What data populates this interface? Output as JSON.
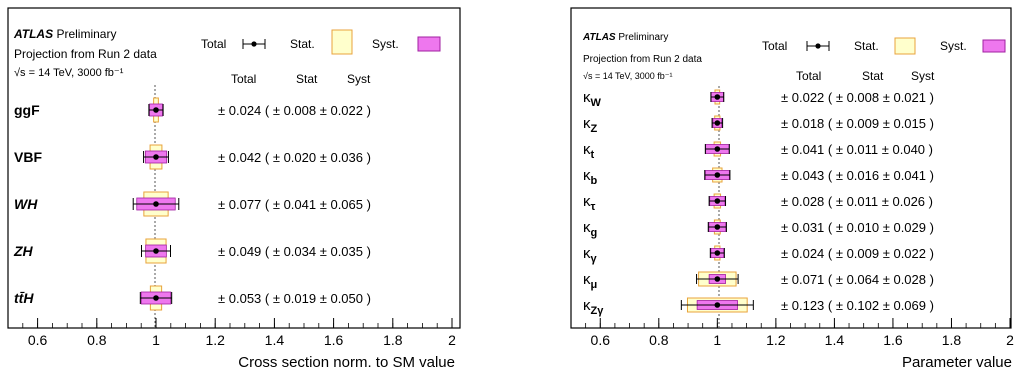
{
  "colors": {
    "stat_fill": "#ffffcc",
    "stat_edge": "#e8a33c",
    "syst_fill": "#ee77ee",
    "syst_edge": "#a020a0",
    "sm_line": "#555555"
  },
  "legend": {
    "total": "Total",
    "stat": "Stat.",
    "syst": "Syst."
  },
  "chart_data": [
    {
      "type": "error-bar",
      "experiment": "ATLAS",
      "tag": "Preliminary",
      "subtitle": "Projection from Run 2 data",
      "energy_label": "√s = 14 TeV, 3000 fb⁻¹",
      "xlabel": "Cross section norm. to SM value",
      "xlim": [
        0.5,
        2.0
      ],
      "xticks": [
        "0.6",
        "0.8",
        "1",
        "1.2",
        "1.4",
        "1.6",
        "1.8",
        "2"
      ],
      "xtick_values": [
        0.6,
        0.8,
        1.0,
        1.2,
        1.4,
        1.6,
        1.8,
        2.0
      ],
      "column_headers": [
        "Total",
        "Stat",
        "Syst"
      ],
      "series": [
        {
          "label": "ggF",
          "value": 1.0,
          "total": 0.024,
          "stat": 0.008,
          "syst": 0.022,
          "text": "± 0.024 ( ± 0.008 ± 0.022 )"
        },
        {
          "label": "VBF",
          "value": 1.0,
          "total": 0.042,
          "stat": 0.02,
          "syst": 0.036,
          "text": "± 0.042 ( ± 0.020 ± 0.036 )"
        },
        {
          "label": "WH",
          "value": 1.0,
          "total": 0.077,
          "stat": 0.041,
          "syst": 0.065,
          "text": "± 0.077 ( ± 0.041 ± 0.065 )"
        },
        {
          "label": "ZH",
          "value": 1.0,
          "total": 0.049,
          "stat": 0.034,
          "syst": 0.035,
          "text": "± 0.049 ( ± 0.034 ± 0.035 )"
        },
        {
          "label": "tt̄H",
          "value": 1.0,
          "total": 0.053,
          "stat": 0.019,
          "syst": 0.05,
          "text": "± 0.053 ( ± 0.019 ± 0.050 )"
        }
      ]
    },
    {
      "type": "error-bar",
      "experiment": "ATLAS",
      "tag": "Preliminary",
      "subtitle": "Projection from Run 2 data",
      "energy_label": "√s = 14 TeV, 3000 fb⁻¹",
      "xlabel": "Parameter value",
      "xlim": [
        0.5,
        2.0
      ],
      "xticks": [
        "0.6",
        "0.8",
        "1",
        "1.2",
        "1.4",
        "1.6",
        "1.8",
        "2"
      ],
      "xtick_values": [
        0.6,
        0.8,
        1.0,
        1.2,
        1.4,
        1.6,
        1.8,
        2.0
      ],
      "column_headers": [
        "Total",
        "Stat",
        "Syst"
      ],
      "series": [
        {
          "label": "κ",
          "sub": "W",
          "value": 1.0,
          "total": 0.022,
          "stat": 0.008,
          "syst": 0.021,
          "text": "± 0.022 ( ± 0.008 ± 0.021 )"
        },
        {
          "label": "κ",
          "sub": "Z",
          "value": 1.0,
          "total": 0.018,
          "stat": 0.009,
          "syst": 0.015,
          "text": "± 0.018 ( ± 0.009 ± 0.015 )"
        },
        {
          "label": "κ",
          "sub": "t",
          "value": 1.0,
          "total": 0.041,
          "stat": 0.011,
          "syst": 0.04,
          "text": "± 0.041 ( ± 0.011 ± 0.040 )"
        },
        {
          "label": "κ",
          "sub": "b",
          "value": 1.0,
          "total": 0.043,
          "stat": 0.016,
          "syst": 0.041,
          "text": "± 0.043 ( ± 0.016 ± 0.041 )"
        },
        {
          "label": "κ",
          "sub": "τ",
          "value": 1.0,
          "total": 0.028,
          "stat": 0.011,
          "syst": 0.026,
          "text": "± 0.028 ( ± 0.011 ± 0.026 )"
        },
        {
          "label": "κ",
          "sub": "g",
          "value": 1.0,
          "total": 0.031,
          "stat": 0.01,
          "syst": 0.029,
          "text": "± 0.031 ( ± 0.010 ± 0.029 )"
        },
        {
          "label": "κ",
          "sub": "γ",
          "value": 1.0,
          "total": 0.024,
          "stat": 0.009,
          "syst": 0.022,
          "text": "± 0.024 ( ± 0.009 ± 0.022 )"
        },
        {
          "label": "κ",
          "sub": "μ",
          "value": 1.0,
          "total": 0.071,
          "stat": 0.064,
          "syst": 0.028,
          "text": "± 0.071 ( ± 0.064 ± 0.028 )"
        },
        {
          "label": "κ",
          "sub": "Zγ",
          "value": 1.0,
          "total": 0.123,
          "stat": 0.102,
          "syst": 0.069,
          "text": "± 0.123 ( ± 0.102 ± 0.069 )"
        }
      ]
    }
  ]
}
